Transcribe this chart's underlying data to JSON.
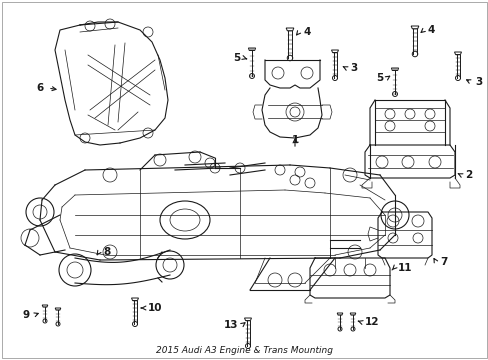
{
  "title": "2015 Audi A3 Engine & Trans Mounting",
  "bg_color": "#ffffff",
  "line_color": "#1a1a1a",
  "label_color": "#000000",
  "fig_width": 4.89,
  "fig_height": 3.6,
  "dpi": 100,
  "border": true,
  "parts": {
    "subframe_color": "#ffffff",
    "mount_color": "#ffffff"
  }
}
